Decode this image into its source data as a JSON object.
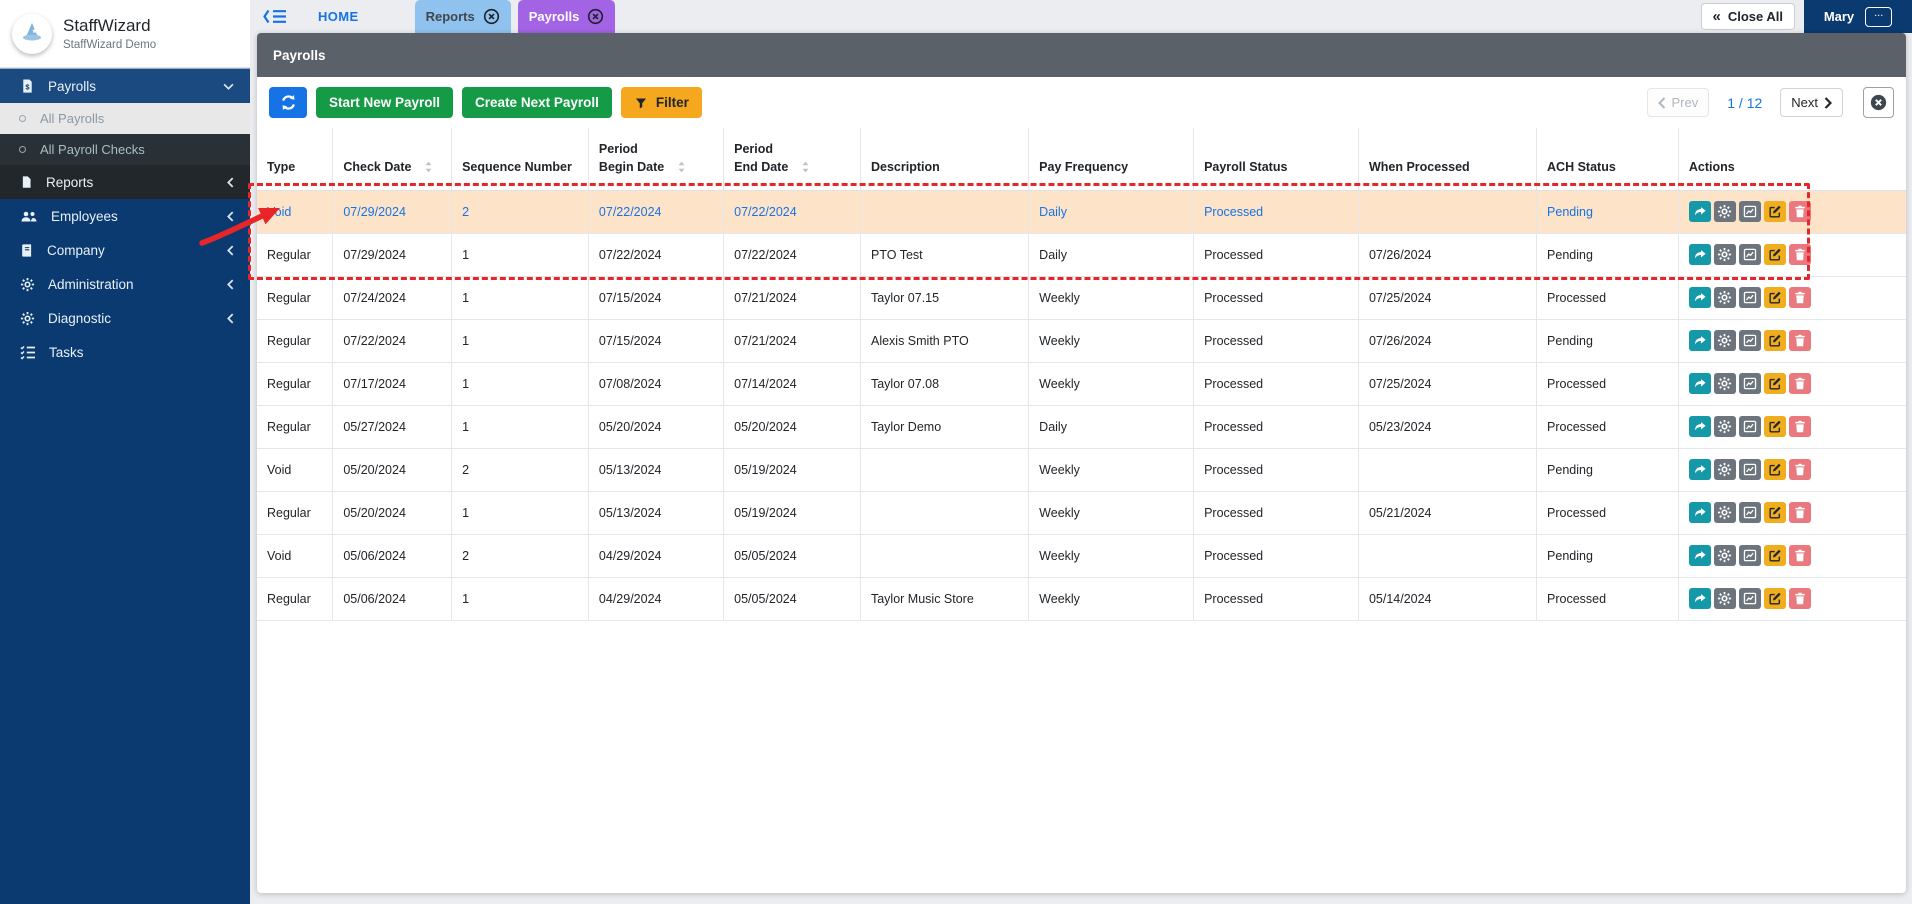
{
  "app": {
    "name": "StaffWizard",
    "subtitle": "StaffWizard Demo"
  },
  "sidebar": {
    "items": [
      {
        "label": "Payrolls",
        "icon": "invoice-dollar-icon",
        "chevron": "down",
        "variant": "active"
      },
      {
        "label": "All Payrolls",
        "type": "sub",
        "selected": true
      },
      {
        "label": "All Payroll Checks",
        "type": "sub",
        "variant": "dark"
      },
      {
        "label": "Reports",
        "icon": "file-icon",
        "chevron": "left",
        "variant": "dark"
      },
      {
        "label": "Employees",
        "icon": "users-icon",
        "chevron": "left"
      },
      {
        "label": "Company",
        "icon": "book-icon",
        "chevron": "left"
      },
      {
        "label": "Administration",
        "icon": "gear-icon",
        "chevron": "left"
      },
      {
        "label": "Diagnostic",
        "icon": "gear-icon",
        "chevron": "left"
      },
      {
        "label": "Tasks",
        "icon": "task-list-icon"
      }
    ]
  },
  "topbar": {
    "home_label": "HOME",
    "tabs": [
      {
        "label": "Reports",
        "close_icon": "circle-x-icon",
        "color": "#8fc2ee",
        "text_color": "#3f474e"
      },
      {
        "label": "Payrolls",
        "close_icon": "circle-x-icon",
        "color": "#a263e4",
        "text_color": "#ffffff",
        "active": true
      }
    ],
    "close_all_label": "Close All",
    "user_name": "Mary",
    "more_label": "..."
  },
  "panel": {
    "title": "Payrolls"
  },
  "toolbar": {
    "start_new_label": "Start New Payroll",
    "create_next_label": "Create Next Payroll",
    "filter_label": "Filter"
  },
  "pagination": {
    "prev_label": "Prev",
    "page_indicator": "1 / 12",
    "next_label": "Next"
  },
  "table": {
    "columns": [
      {
        "key": "type",
        "label": "Type",
        "width": "4.6%"
      },
      {
        "key": "check_date",
        "label": "Check Date",
        "sortable": true,
        "width": "7.2%"
      },
      {
        "key": "sequence_number",
        "label": "Sequence Number",
        "width": "8.3%"
      },
      {
        "key": "period_begin_date",
        "label_top": "Period",
        "label": "Begin Date",
        "sortable": true,
        "width": "8.2%"
      },
      {
        "key": "period_end_date",
        "label_top": "Period",
        "label": "End Date",
        "sortable": true,
        "width": "8.3%"
      },
      {
        "key": "description",
        "label": "Description",
        "width": "10.2%"
      },
      {
        "key": "pay_frequency",
        "label": "Pay Frequency",
        "width": "10.0%"
      },
      {
        "key": "payroll_status",
        "label": "Payroll Status",
        "width": "10.0%"
      },
      {
        "key": "when_processed",
        "label": "When Processed",
        "width": "10.8%"
      },
      {
        "key": "ach_status",
        "label": "ACH Status",
        "width": "8.6%"
      },
      {
        "key": "actions",
        "label": "Actions",
        "width": "13.8%"
      }
    ],
    "actions": [
      {
        "name": "share",
        "icon": "share-icon",
        "color": "#1599a8"
      },
      {
        "name": "settings",
        "icon": "gear-icon",
        "color": "#6c757d"
      },
      {
        "name": "chart",
        "icon": "chart-icon",
        "color": "#6c757d"
      },
      {
        "name": "edit",
        "icon": "edit-icon",
        "color": "#f0ad1e"
      },
      {
        "name": "delete",
        "icon": "trash-icon",
        "color": "#e9797e"
      }
    ],
    "rows": [
      {
        "type": "Void",
        "check_date": "07/29/2024",
        "sequence_number": "2",
        "period_begin_date": "07/22/2024",
        "period_end_date": "07/22/2024",
        "description": "",
        "pay_frequency": "Daily",
        "payroll_status": "Processed",
        "when_processed": "",
        "ach_status": "Pending",
        "highlight": true
      },
      {
        "type": "Regular",
        "check_date": "07/29/2024",
        "sequence_number": "1",
        "period_begin_date": "07/22/2024",
        "period_end_date": "07/22/2024",
        "description": "PTO Test",
        "pay_frequency": "Daily",
        "payroll_status": "Processed",
        "when_processed": "07/26/2024",
        "ach_status": "Pending"
      },
      {
        "type": "Regular",
        "check_date": "07/24/2024",
        "sequence_number": "1",
        "period_begin_date": "07/15/2024",
        "period_end_date": "07/21/2024",
        "description": "Taylor 07.15",
        "pay_frequency": "Weekly",
        "payroll_status": "Processed",
        "when_processed": "07/25/2024",
        "ach_status": "Processed"
      },
      {
        "type": "Regular",
        "check_date": "07/22/2024",
        "sequence_number": "1",
        "period_begin_date": "07/15/2024",
        "period_end_date": "07/21/2024",
        "description": "Alexis Smith PTO",
        "pay_frequency": "Weekly",
        "payroll_status": "Processed",
        "when_processed": "07/26/2024",
        "ach_status": "Pending"
      },
      {
        "type": "Regular",
        "check_date": "07/17/2024",
        "sequence_number": "1",
        "period_begin_date": "07/08/2024",
        "period_end_date": "07/14/2024",
        "description": "Taylor 07.08",
        "pay_frequency": "Weekly",
        "payroll_status": "Processed",
        "when_processed": "07/25/2024",
        "ach_status": "Processed"
      },
      {
        "type": "Regular",
        "check_date": "05/27/2024",
        "sequence_number": "1",
        "period_begin_date": "05/20/2024",
        "period_end_date": "05/20/2024",
        "description": "Taylor Demo",
        "pay_frequency": "Daily",
        "payroll_status": "Processed",
        "when_processed": "05/23/2024",
        "ach_status": "Processed"
      },
      {
        "type": "Void",
        "check_date": "05/20/2024",
        "sequence_number": "2",
        "period_begin_date": "05/13/2024",
        "period_end_date": "05/19/2024",
        "description": "",
        "pay_frequency": "Weekly",
        "payroll_status": "Processed",
        "when_processed": "",
        "ach_status": "Pending"
      },
      {
        "type": "Regular",
        "check_date": "05/20/2024",
        "sequence_number": "1",
        "period_begin_date": "05/13/2024",
        "period_end_date": "05/19/2024",
        "description": "",
        "pay_frequency": "Weekly",
        "payroll_status": "Processed",
        "when_processed": "05/21/2024",
        "ach_status": "Processed"
      },
      {
        "type": "Void",
        "check_date": "05/06/2024",
        "sequence_number": "2",
        "period_begin_date": "04/29/2024",
        "period_end_date": "05/05/2024",
        "description": "",
        "pay_frequency": "Weekly",
        "payroll_status": "Processed",
        "when_processed": "",
        "ach_status": "Pending"
      },
      {
        "type": "Regular",
        "check_date": "05/06/2024",
        "sequence_number": "1",
        "period_begin_date": "04/29/2024",
        "period_end_date": "05/05/2024",
        "description": "Taylor Music Store",
        "pay_frequency": "Weekly",
        "payroll_status": "Processed",
        "when_processed": "05/14/2024",
        "ach_status": "Processed"
      }
    ]
  },
  "annotation": {
    "color": "#e8262a"
  }
}
